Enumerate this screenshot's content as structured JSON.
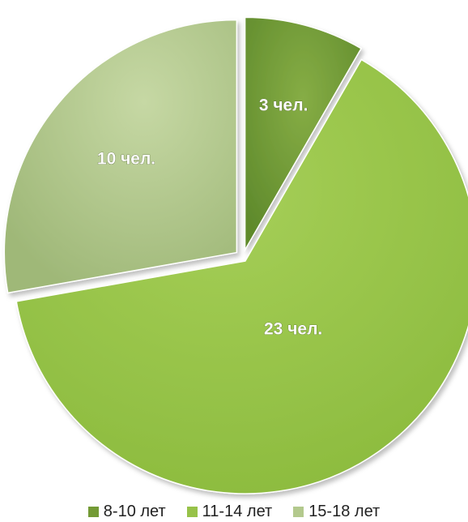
{
  "chart_data": {
    "type": "pie",
    "title": "",
    "slices": [
      {
        "category": "8-10 лет",
        "value": 3,
        "label": "3 чел.",
        "color": "#739a35"
      },
      {
        "category": "11-14 лет",
        "value": 23,
        "label": "23 чел.",
        "color": "#97c249"
      },
      {
        "category": "15-18 лет",
        "value": 10,
        "label": "10 чел.",
        "color": "#b3c98d"
      }
    ],
    "legend_position": "bottom",
    "exploded": true
  }
}
